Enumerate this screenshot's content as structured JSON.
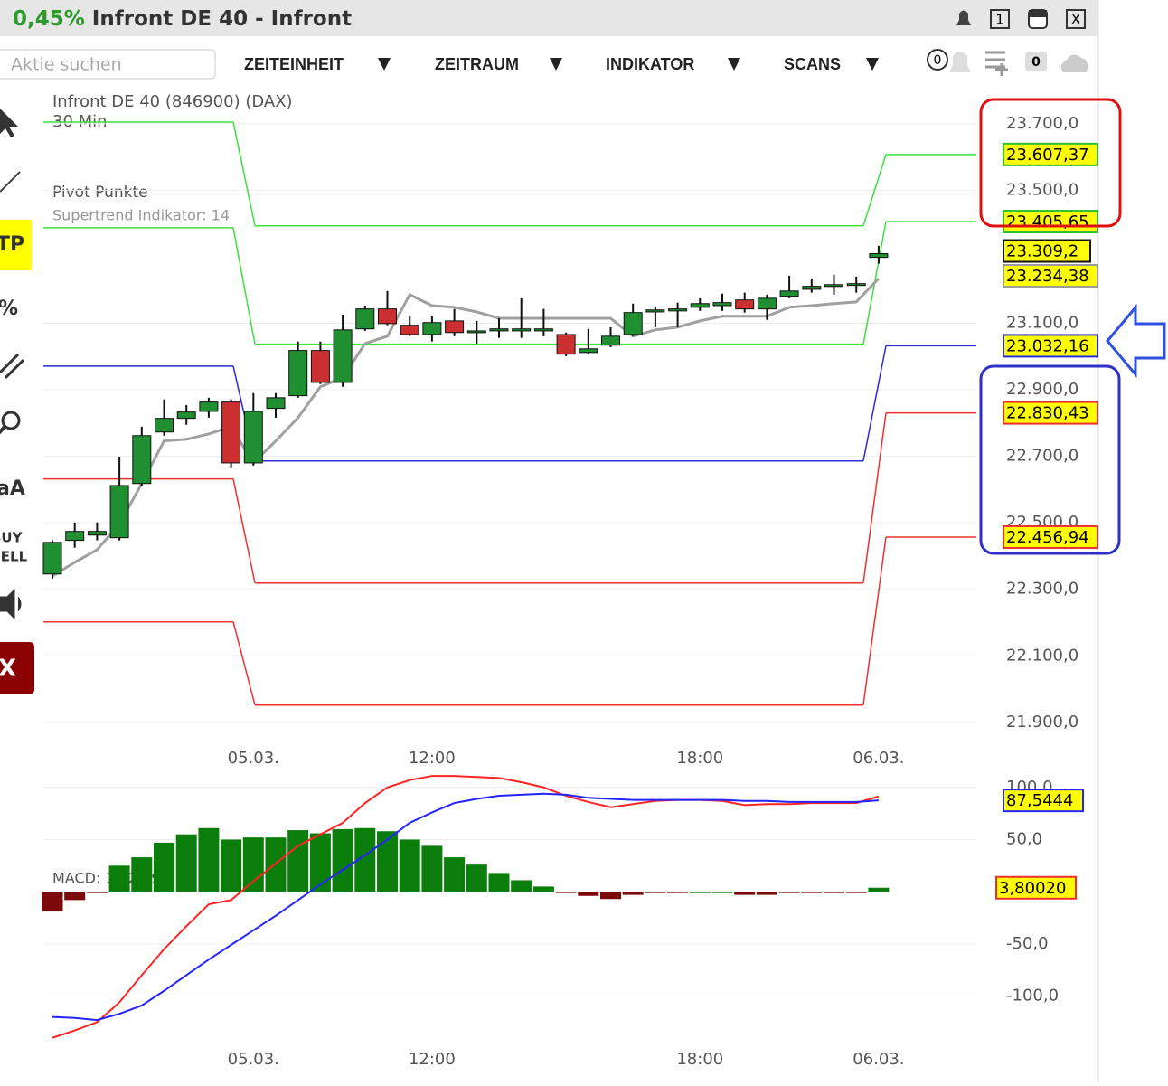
{
  "header": {
    "change": "0,45%",
    "title": "Infront DE 40 - Infront",
    "buttons": [
      "1",
      "X"
    ]
  },
  "toolbar": {
    "search_placeholder": "Aktie suchen",
    "menus": [
      "ZEITEINHEIT",
      "ZEITRAUM",
      "INDIKATOR",
      "SCANS"
    ],
    "badges": [
      "0",
      "0"
    ]
  },
  "sidebar": {
    "items": [
      "TP",
      "%",
      "aA",
      "BUY",
      "SELL",
      "X"
    ]
  },
  "chart": {
    "instrument": "Infront DE 40 (846900) (DAX)",
    "interval": "30 Min",
    "indicators": [
      "Pivot Punkte",
      "Supertrend Indikator: 14"
    ],
    "ylim": [
      21856,
      23800
    ],
    "yticks": [
      {
        "value": 23700,
        "label": "23.700,0"
      },
      {
        "value": 23500,
        "label": "23.500,0"
      },
      {
        "value": 23100,
        "label": "23.100,0"
      },
      {
        "value": 22900,
        "label": "22.900,0"
      },
      {
        "value": 22700,
        "label": "22.700,0"
      },
      {
        "value": 22500,
        "label": "22.500,0"
      },
      {
        "value": 22300,
        "label": "22.300,0"
      },
      {
        "value": 22100,
        "label": "22.100,0"
      },
      {
        "value": 21900,
        "label": "21.900,0"
      }
    ],
    "categories": [
      null,
      null,
      null,
      null,
      null,
      null,
      null,
      null,
      null,
      "05.03.",
      null,
      null,
      null,
      null,
      null,
      null,
      null,
      "12:00",
      null,
      null,
      null,
      null,
      null,
      null,
      null,
      null,
      null,
      null,
      null,
      "18:00",
      null,
      null,
      null,
      null,
      null,
      null,
      null,
      "06.03."
    ],
    "candles": {
      "up_color": "#1f8f32",
      "down_color": "#cc2f2f",
      "open": [
        22346,
        22447,
        22463,
        22455,
        22618,
        22773,
        22814,
        22835,
        22863,
        22680,
        22844,
        22882,
        23018,
        22922,
        23083,
        23143,
        23094,
        23066,
        23107,
        23072,
        23077,
        23077,
        23077,
        23066,
        23012,
        23034,
        23066,
        23134,
        23137,
        23148,
        23153,
        23170,
        23143,
        23181,
        23202,
        23213,
        23216,
        23298
      ],
      "high": [
        22447,
        22501,
        22501,
        22699,
        22789,
        22871,
        22854,
        22876,
        22871,
        22890,
        22890,
        23045,
        23045,
        23126,
        23153,
        23197,
        23121,
        23121,
        23143,
        23107,
        23115,
        23175,
        23143,
        23072,
        23083,
        23088,
        23159,
        23148,
        23162,
        23175,
        23189,
        23192,
        23186,
        23243,
        23235,
        23246,
        23240,
        23333
      ],
      "low": [
        22332,
        22425,
        22447,
        22447,
        22610,
        22762,
        22795,
        22816,
        22664,
        22672,
        22816,
        22876,
        22917,
        22909,
        23077,
        23094,
        23061,
        23045,
        23061,
        23039,
        23056,
        23056,
        23061,
        23001,
        23007,
        23028,
        23061,
        23088,
        23088,
        23137,
        23137,
        23132,
        23110,
        23175,
        23192,
        23186,
        23192,
        23279
      ],
      "close": [
        22441,
        22474,
        22474,
        22612,
        22762,
        22814,
        22833,
        22863,
        22680,
        22835,
        22876,
        23018,
        22922,
        23080,
        23143,
        23099,
        23066,
        23102,
        23072,
        23077,
        23083,
        23083,
        23083,
        23007,
        23023,
        23061,
        23132,
        23140,
        23143,
        23159,
        23162,
        23143,
        23175,
        23197,
        23211,
        23216,
        23219,
        23309.2
      ],
      "close_value_labels": [
        null,
        null,
        null,
        null,
        null,
        null,
        null,
        null,
        null,
        null,
        null,
        null,
        null,
        null,
        null,
        null,
        null,
        null,
        null,
        null,
        null,
        null,
        null,
        null,
        null,
        null,
        null,
        null,
        null,
        null,
        null,
        null,
        null,
        null,
        null,
        null,
        null,
        "23.309,2"
      ]
    },
    "supertrend": {
      "color": "#a0a0a0",
      "values": [
        22340,
        22381,
        22419,
        22496,
        22618,
        22746,
        22751,
        22767,
        22789,
        22680,
        22746,
        22816,
        22909,
        22936,
        23039,
        23061,
        23186,
        23153,
        23148,
        23134,
        23115,
        23115,
        23115,
        23115,
        23115,
        23115,
        23061,
        23080,
        23088,
        23107,
        23121,
        23121,
        23121,
        23148,
        23153,
        23159,
        23164,
        23234.38
      ],
      "value_labels": [
        null,
        null,
        null,
        null,
        null,
        null,
        null,
        null,
        null,
        null,
        null,
        null,
        null,
        null,
        null,
        null,
        null,
        null,
        null,
        null,
        null,
        null,
        null,
        null,
        null,
        null,
        null,
        null,
        null,
        null,
        null,
        null,
        null,
        null,
        null,
        null,
        null,
        "23.234,38"
      ]
    },
    "pivots": [
      {
        "color": "#3ee03e",
        "values": [
          23705,
          23393,
          23607.37
        ],
        "value_labels": [
          null,
          null,
          "23.607,37"
        ]
      },
      {
        "color": "#3ee03e",
        "values": [
          23387,
          23037,
          23405.65
        ],
        "value_labels": [
          null,
          null,
          "23.405,65"
        ]
      },
      {
        "color": "#2b2bd8",
        "values": [
          22971,
          22686,
          23032.16
        ],
        "value_labels": [
          null,
          null,
          "23.032,16"
        ]
      },
      {
        "color": "#ee3030",
        "values": [
          22632,
          22319,
          22830.43
        ],
        "value_labels": [
          null,
          null,
          "22.830,43"
        ]
      },
      {
        "color": "#ee3030",
        "values": [
          22202,
          21952,
          22456.94
        ],
        "value_labels": [
          null,
          null,
          "22.456,94"
        ]
      }
    ]
  },
  "macd": {
    "label": "MACD: 12 26 9",
    "ylim": [
      -142,
      118
    ],
    "yticks": [
      {
        "value": 100,
        "label": "100,0"
      },
      {
        "value": 50,
        "label": "50,0"
      },
      {
        "value": -50,
        "label": "-50,0"
      },
      {
        "value": -100,
        "label": "-100,0"
      }
    ],
    "histogram": {
      "up_color": "#0a7d0a",
      "down_color": "#7d0a0a",
      "values": [
        -19,
        -8,
        -1,
        25,
        33,
        47,
        55,
        61,
        50,
        52,
        52,
        59,
        56,
        60,
        61,
        58,
        50,
        44,
        33,
        26,
        18,
        11,
        5,
        -1,
        -4,
        -7,
        -3,
        -1,
        -1,
        0,
        0,
        -3,
        -3,
        -1,
        -1,
        -1,
        -1,
        3.8002
      ],
      "value_labels": [
        null,
        null,
        null,
        null,
        null,
        null,
        null,
        null,
        null,
        null,
        null,
        null,
        null,
        null,
        null,
        null,
        null,
        null,
        null,
        null,
        null,
        null,
        null,
        null,
        null,
        null,
        null,
        null,
        null,
        null,
        null,
        null,
        null,
        null,
        null,
        null,
        null,
        "3,80020"
      ]
    },
    "macd_line": {
      "color": "#ff2424",
      "values": [
        -140,
        -133,
        -125,
        -106,
        -80,
        -55,
        -33,
        -12,
        -8,
        10,
        27,
        44,
        55,
        66,
        85,
        100,
        107,
        111,
        111,
        110,
        109,
        105,
        100,
        92,
        86,
        81,
        84,
        87,
        88,
        88,
        87,
        83,
        84,
        84,
        85,
        85,
        85,
        91.3444
      ]
    },
    "signal": {
      "color": "#2424ff",
      "values": [
        -120,
        -121,
        -123,
        -117,
        -109,
        -95,
        -80,
        -65,
        -51,
        -37,
        -23,
        -8,
        7,
        21,
        35,
        50,
        66,
        76,
        85,
        89,
        92,
        93,
        94,
        93,
        90,
        89,
        88,
        88,
        88,
        88,
        88,
        87,
        87,
        86,
        86,
        86,
        86,
        87.5444
      ],
      "value_labels": [
        null,
        null,
        null,
        null,
        null,
        null,
        null,
        null,
        null,
        null,
        null,
        null,
        null,
        null,
        null,
        null,
        null,
        null,
        null,
        null,
        null,
        null,
        null,
        null,
        null,
        null,
        null,
        null,
        null,
        null,
        null,
        null,
        null,
        null,
        null,
        null,
        null,
        "87,5444"
      ]
    }
  }
}
